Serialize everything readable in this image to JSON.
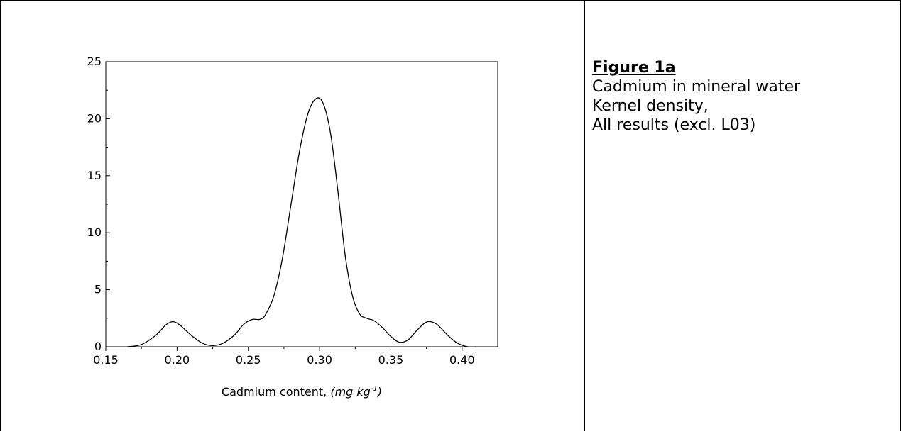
{
  "chart_data": {
    "type": "line",
    "title": "",
    "xlabel": "Cadmium content,",
    "xlabel_unit": "(mg kg",
    "xlabel_unit_sup": "-1",
    "xlabel_unit_close": ")",
    "ylabel": "",
    "xlim": [
      0.15,
      0.425
    ],
    "ylim": [
      0,
      25
    ],
    "x_ticks": [
      "0.15",
      "0.20",
      "0.25",
      "0.30",
      "0.35",
      "0.40"
    ],
    "y_ticks": [
      "0",
      "5",
      "10",
      "15",
      "20",
      "25"
    ],
    "grid": false,
    "series": [
      {
        "points": [
          [
            0.165,
            0.0
          ],
          [
            0.175,
            0.2
          ],
          [
            0.185,
            1.0
          ],
          [
            0.192,
            1.9
          ],
          [
            0.197,
            2.2
          ],
          [
            0.202,
            1.9
          ],
          [
            0.21,
            1.0
          ],
          [
            0.218,
            0.3
          ],
          [
            0.225,
            0.1
          ],
          [
            0.232,
            0.3
          ],
          [
            0.24,
            1.0
          ],
          [
            0.247,
            2.0
          ],
          [
            0.253,
            2.4
          ],
          [
            0.258,
            2.4
          ],
          [
            0.262,
            2.8
          ],
          [
            0.268,
            4.5
          ],
          [
            0.274,
            7.8
          ],
          [
            0.28,
            12.5
          ],
          [
            0.286,
            17.2
          ],
          [
            0.292,
            20.5
          ],
          [
            0.298,
            21.8
          ],
          [
            0.303,
            21.2
          ],
          [
            0.308,
            18.5
          ],
          [
            0.313,
            13.5
          ],
          [
            0.318,
            8.0
          ],
          [
            0.323,
            4.5
          ],
          [
            0.328,
            2.9
          ],
          [
            0.333,
            2.5
          ],
          [
            0.338,
            2.3
          ],
          [
            0.344,
            1.7
          ],
          [
            0.35,
            0.9
          ],
          [
            0.356,
            0.4
          ],
          [
            0.362,
            0.6
          ],
          [
            0.368,
            1.4
          ],
          [
            0.374,
            2.1
          ],
          [
            0.378,
            2.2
          ],
          [
            0.383,
            1.9
          ],
          [
            0.39,
            1.0
          ],
          [
            0.397,
            0.3
          ],
          [
            0.404,
            0.0
          ],
          [
            0.41,
            0.0
          ]
        ]
      }
    ]
  },
  "caption": {
    "title": "Figure 1a",
    "lines": [
      "Cadmium in mineral water",
      "Kernel density,",
      "All results (excl. L03)"
    ]
  }
}
